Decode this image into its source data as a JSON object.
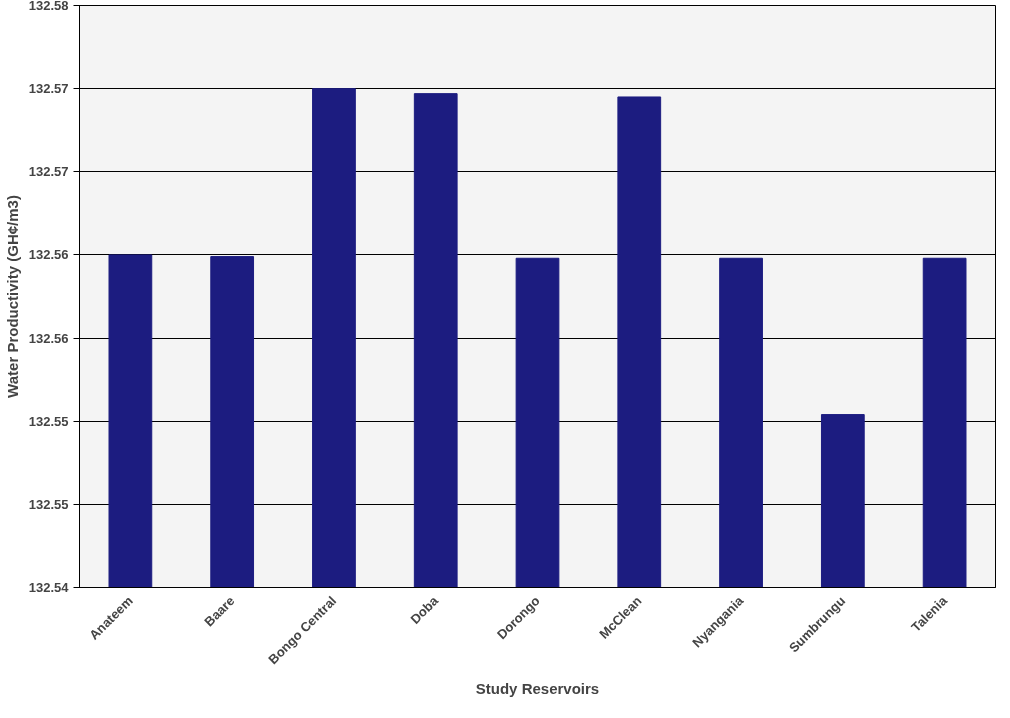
{
  "chart_data": {
    "type": "bar",
    "xlabel": "Study Reservoirs",
    "ylabel": "Water Productivity (GH¢/m3)",
    "categories": [
      "Anateem",
      "Baare",
      "Bongo Central",
      "Doba",
      "Dorongo",
      "McClean",
      "Nyangania",
      "Sumbrungu",
      "Talenia"
    ],
    "values": [
      132.5625,
      132.5624,
      132.5725,
      132.5722,
      132.5623,
      132.572,
      132.5623,
      132.5529,
      132.5623
    ],
    "color": "#1c1c80",
    "ylim": [
      132.5425,
      132.5775
    ],
    "yticks": [
      {
        "value": 132.5425,
        "label": "132.54"
      },
      {
        "value": 132.5475,
        "label": "132.55"
      },
      {
        "value": 132.5525,
        "label": "132.55"
      },
      {
        "value": 132.5575,
        "label": "132.56"
      },
      {
        "value": 132.5625,
        "label": "132.56"
      },
      {
        "value": 132.5675,
        "label": "132.57"
      },
      {
        "value": 132.5725,
        "label": "132.57"
      },
      {
        "value": 132.5775,
        "label": "132.58"
      }
    ],
    "grid": "y"
  }
}
